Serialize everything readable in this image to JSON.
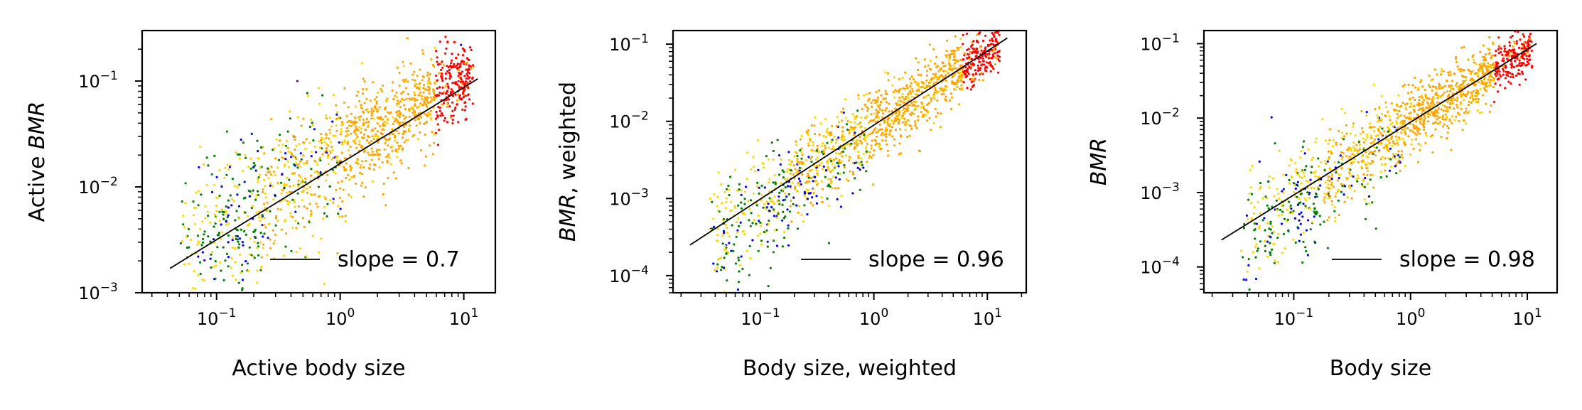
{
  "figure": {
    "panels_count": 3
  },
  "colors": {
    "red": "#ff0000",
    "orange": "#ffa500",
    "gold": "#ffd700",
    "green": "#008000",
    "blue": "#0000ff",
    "purple": "#800080",
    "fit_line": "#000000"
  },
  "chart_data": [
    {
      "type": "scatter",
      "xlabel": "Active body size",
      "ylabel_main": "Active ",
      "ylabel_italic": "BMR",
      "ylabel_rest": "",
      "xscale": "log",
      "yscale": "log",
      "xlim": [
        0.025,
        18
      ],
      "ylim": [
        0.001,
        0.3
      ],
      "xticks": [
        {
          "base": "10",
          "exp": "−1",
          "value": 0.1
        },
        {
          "base": "10",
          "exp": "0",
          "value": 1
        },
        {
          "base": "10",
          "exp": "1",
          "value": 10
        }
      ],
      "yticks": [
        {
          "base": "10",
          "exp": "−3",
          "value": 0.001
        },
        {
          "base": "10",
          "exp": "−2",
          "value": 0.01
        },
        {
          "base": "10",
          "exp": "−1",
          "value": 0.1
        }
      ],
      "fit_line": {
        "x": [
          0.042,
          13
        ],
        "y": [
          0.0017,
          0.105
        ],
        "slope": 0.7
      },
      "legend": {
        "label": "slope = 0.7",
        "position": "lower right"
      },
      "scatter_model": {
        "x_range": [
          0.05,
          12
        ],
        "slope": 0.7,
        "intercept_at_1": 0.0203,
        "spread_dex": 0.28
      }
    },
    {
      "type": "scatter",
      "xlabel": "Body size, weighted",
      "ylabel_main": "",
      "ylabel_italic": "BMR",
      "ylabel_rest": ", weighted",
      "xscale": "log",
      "yscale": "log",
      "xlim": [
        0.017,
        22
      ],
      "ylim": [
        6e-05,
        0.15
      ],
      "xticks": [
        {
          "base": "10",
          "exp": "−1",
          "value": 0.1
        },
        {
          "base": "10",
          "exp": "0",
          "value": 1
        },
        {
          "base": "10",
          "exp": "1",
          "value": 10
        }
      ],
      "yticks": [
        {
          "base": "10",
          "exp": "−4",
          "value": 0.0001
        },
        {
          "base": "10",
          "exp": "−3",
          "value": 0.001
        },
        {
          "base": "10",
          "exp": "−2",
          "value": 0.01
        },
        {
          "base": "10",
          "exp": "−1",
          "value": 0.1
        }
      ],
      "fit_line": {
        "x": [
          0.024,
          15
        ],
        "y": [
          0.00025,
          0.12
        ],
        "slope": 0.96
      },
      "legend": {
        "label": "slope = 0.96",
        "position": "lower right"
      },
      "scatter_model": {
        "x_range": [
          0.035,
          13
        ],
        "slope": 0.96,
        "intercept_at_1": 0.0088,
        "spread_dex": 0.26
      }
    },
    {
      "type": "scatter",
      "xlabel": "Body size",
      "ylabel_main": "",
      "ylabel_italic": "BMR",
      "ylabel_rest": "",
      "xscale": "log",
      "yscale": "log",
      "xlim": [
        0.017,
        18
      ],
      "ylim": [
        4.5e-05,
        0.15
      ],
      "xticks": [
        {
          "base": "10",
          "exp": "−1",
          "value": 0.1
        },
        {
          "base": "10",
          "exp": "0",
          "value": 1
        },
        {
          "base": "10",
          "exp": "1",
          "value": 10
        }
      ],
      "yticks": [
        {
          "base": "10",
          "exp": "−4",
          "value": 0.0001
        },
        {
          "base": "10",
          "exp": "−3",
          "value": 0.001
        },
        {
          "base": "10",
          "exp": "−2",
          "value": 0.01
        },
        {
          "base": "10",
          "exp": "−1",
          "value": 0.1
        }
      ],
      "fit_line": {
        "x": [
          0.024,
          12
        ],
        "y": [
          0.00023,
          0.1
        ],
        "slope": 0.98
      },
      "legend": {
        "label": "slope = 0.98",
        "position": "lower right"
      },
      "scatter_model": {
        "x_range": [
          0.035,
          11
        ],
        "slope": 0.98,
        "intercept_at_1": 0.0087,
        "spread_dex": 0.26
      }
    }
  ]
}
